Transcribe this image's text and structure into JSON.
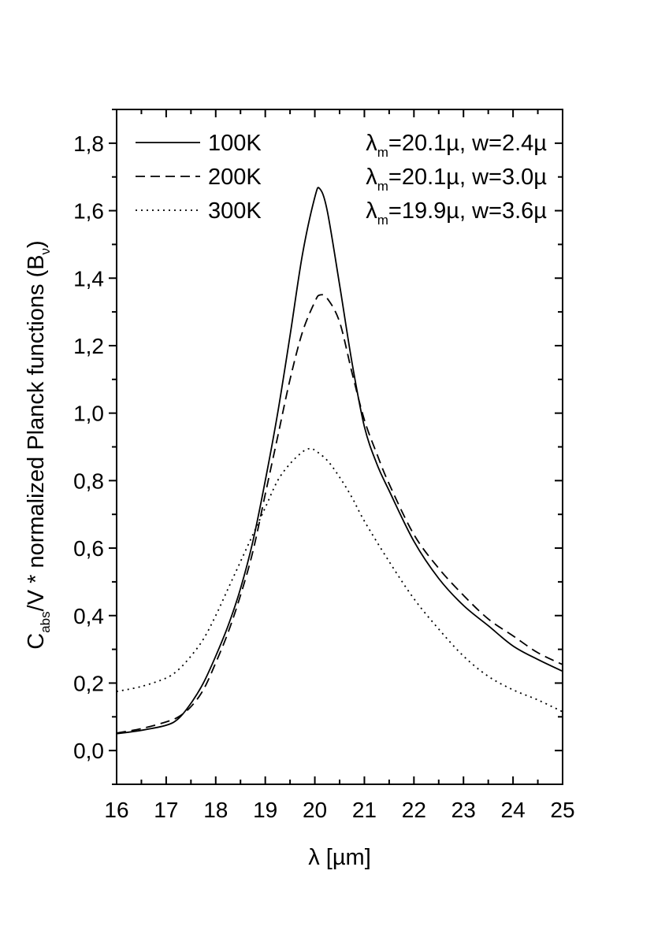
{
  "chart_data": {
    "type": "line",
    "xlabel": "λ [µm]",
    "ylabel_main": "C",
    "ylabel_sub": "abs",
    "ylabel_rest": "/V * normalized Planck functions (B",
    "ylabel_sub2": "ν",
    "ylabel_end": ")",
    "xlim": [
      16,
      25
    ],
    "ylim": [
      -0.1,
      1.9
    ],
    "xticks": [
      16,
      17,
      18,
      19,
      20,
      21,
      22,
      23,
      24,
      25
    ],
    "xtick_labels": [
      "16",
      "17",
      "18",
      "19",
      "20",
      "21",
      "22",
      "23",
      "24",
      "25"
    ],
    "yticks": [
      0.0,
      0.2,
      0.4,
      0.6,
      0.8,
      1.0,
      1.2,
      1.4,
      1.6,
      1.8
    ],
    "ytick_labels": [
      "0,0",
      "0,2",
      "0,4",
      "0,6",
      "0,8",
      "1,0",
      "1,2",
      "1,4",
      "1,6",
      "1,8"
    ],
    "series": [
      {
        "name": "100K",
        "style": "solid",
        "lambda_label": "λ",
        "lambda_sub": "m",
        "param_text": "=20.1µ, w=2.4µ",
        "x": [
          16,
          16.5,
          17,
          17.25,
          17.5,
          17.75,
          18,
          18.25,
          18.5,
          18.75,
          19,
          19.25,
          19.5,
          19.75,
          20,
          20.1,
          20.25,
          20.5,
          20.75,
          21,
          21.25,
          21.5,
          22,
          22.5,
          23,
          23.5,
          24,
          24.5,
          25
        ],
        "y": [
          0.05,
          0.06,
          0.075,
          0.095,
          0.14,
          0.2,
          0.28,
          0.37,
          0.48,
          0.62,
          0.8,
          1.0,
          1.23,
          1.47,
          1.64,
          1.665,
          1.6,
          1.38,
          1.15,
          0.96,
          0.85,
          0.77,
          0.62,
          0.51,
          0.43,
          0.37,
          0.31,
          0.27,
          0.235
        ]
      },
      {
        "name": "200K",
        "style": "dashed",
        "lambda_label": "λ",
        "lambda_sub": "m",
        "param_text": "=20.1µ, w=3.0µ",
        "x": [
          16,
          16.5,
          17,
          17.25,
          17.5,
          17.75,
          18,
          18.25,
          18.5,
          18.75,
          19,
          19.25,
          19.5,
          19.75,
          20,
          20.1,
          20.25,
          20.5,
          20.75,
          21,
          21.25,
          21.5,
          22,
          22.5,
          23,
          23.5,
          24,
          24.5,
          25
        ],
        "y": [
          0.052,
          0.065,
          0.085,
          0.1,
          0.13,
          0.18,
          0.26,
          0.35,
          0.46,
          0.59,
          0.76,
          0.93,
          1.1,
          1.24,
          1.33,
          1.35,
          1.34,
          1.27,
          1.12,
          0.98,
          0.88,
          0.79,
          0.64,
          0.54,
          0.46,
          0.39,
          0.34,
          0.29,
          0.255
        ]
      },
      {
        "name": "300K",
        "style": "dotted",
        "lambda_label": "λ",
        "lambda_sub": "m",
        "param_text": "=19.9µ, w=3.6µ",
        "x": [
          16,
          16.5,
          17,
          17.25,
          17.5,
          17.75,
          18,
          18.25,
          18.5,
          18.75,
          19,
          19.25,
          19.5,
          19.75,
          19.9,
          20,
          20.25,
          20.5,
          20.75,
          21,
          21.5,
          22,
          22.5,
          23,
          23.5,
          24,
          24.5,
          25
        ],
        "y": [
          0.175,
          0.19,
          0.215,
          0.24,
          0.28,
          0.33,
          0.4,
          0.48,
          0.56,
          0.64,
          0.72,
          0.8,
          0.85,
          0.885,
          0.895,
          0.89,
          0.86,
          0.81,
          0.75,
          0.68,
          0.56,
          0.45,
          0.36,
          0.28,
          0.22,
          0.18,
          0.15,
          0.115
        ]
      }
    ]
  }
}
